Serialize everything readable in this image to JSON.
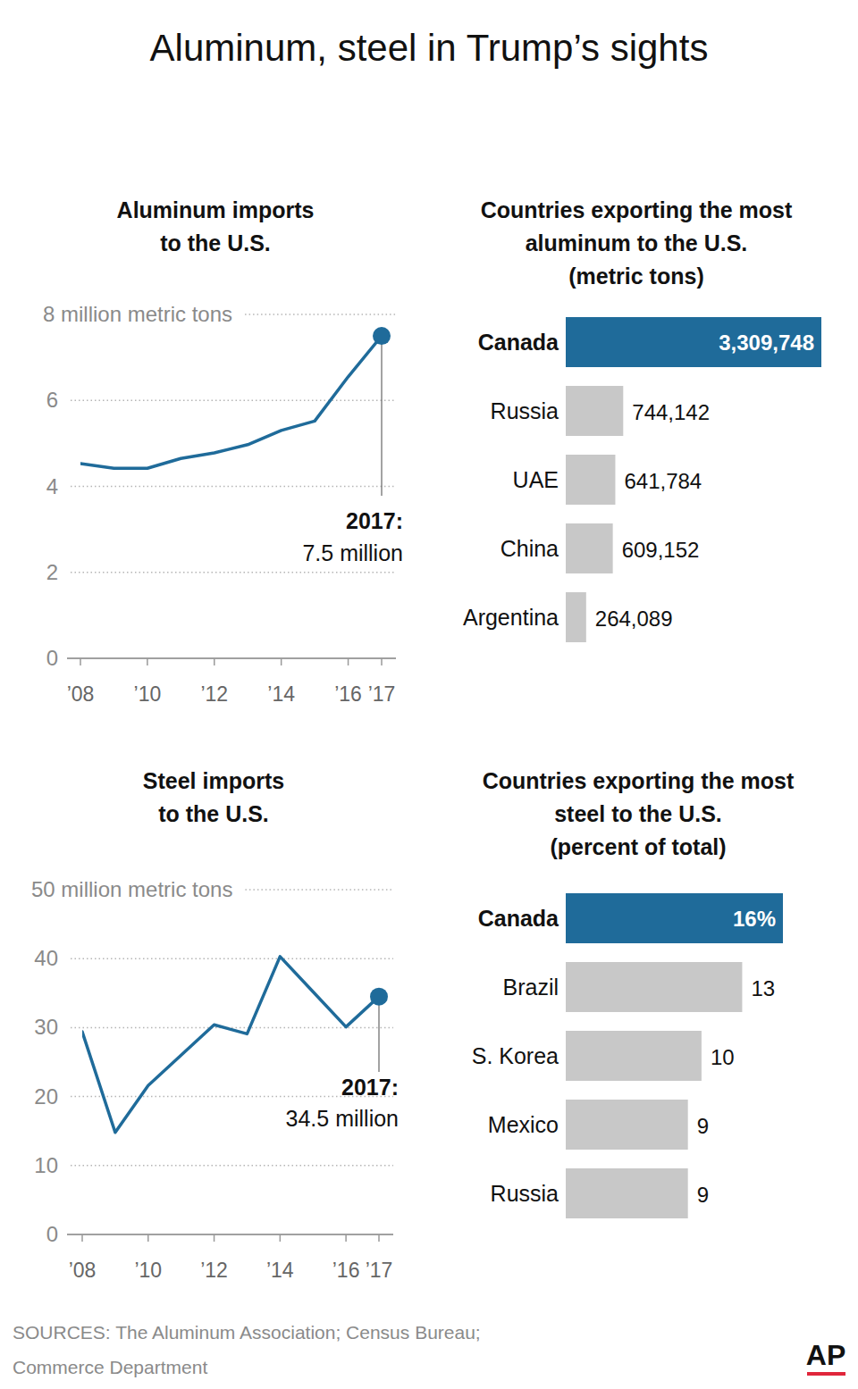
{
  "title": "Aluminum, steel in Trump’s sights",
  "chart_data": [
    {
      "type": "line",
      "title": "Aluminum imports to the U.S.",
      "x": [
        2008,
        2009,
        2010,
        2011,
        2012,
        2013,
        2014,
        2015,
        2016,
        2017
      ],
      "values": [
        4.53,
        4.42,
        4.42,
        4.65,
        4.78,
        4.97,
        5.3,
        5.52,
        6.55,
        7.5
      ],
      "color": "#1f6b9a",
      "xlim": [
        2008,
        2017
      ],
      "xticks": [
        {
          "value": 2008,
          "label": "’08"
        },
        {
          "value": 2010,
          "label": "’10"
        },
        {
          "value": 2012,
          "label": "’12"
        },
        {
          "value": 2014,
          "label": "’14"
        },
        {
          "value": 2016,
          "label": "’16"
        },
        {
          "value": 2017,
          "label": "’17"
        }
      ],
      "ylim": [
        0,
        8
      ],
      "yticks": [
        0,
        2,
        4,
        6,
        {
          "value": 8,
          "label": "8 million metric tons"
        }
      ],
      "grid": true,
      "annotation": {
        "x": 2017,
        "label": "2017:",
        "text": "7.5 million"
      }
    },
    {
      "type": "bar",
      "orientation": "horizontal",
      "title": "Countries exporting the most aluminum to the U.S.",
      "subtitle": "(metric tons)",
      "categories": [
        "Canada",
        "Russia",
        "UAE",
        "China",
        "Argentina"
      ],
      "values": [
        3309748,
        744142,
        641784,
        609152,
        264089
      ],
      "value_labels": [
        "3,309,748",
        "744,142",
        "641,784",
        "609,152",
        "264,089"
      ],
      "data_labels": true,
      "tick_labels": "y",
      "colors": [
        "#1f6b9a",
        "#c8c8c8",
        "#c8c8c8",
        "#c8c8c8",
        "#c8c8c8"
      ]
    },
    {
      "type": "line",
      "title": "Steel imports to the U.S.",
      "x": [
        2008,
        2009,
        2010,
        2011,
        2012,
        2013,
        2014,
        2015,
        2016,
        2017
      ],
      "values": [
        29.4,
        14.8,
        21.6,
        26,
        30.4,
        29.1,
        40.3,
        35.2,
        30.1,
        34.5
      ],
      "color": "#1f6b9a",
      "xlim": [
        2008,
        2017
      ],
      "xticks": [
        {
          "value": 2008,
          "label": "’08"
        },
        {
          "value": 2010,
          "label": "’10"
        },
        {
          "value": 2012,
          "label": "’12"
        },
        {
          "value": 2014,
          "label": "’14"
        },
        {
          "value": 2016,
          "label": "’16"
        },
        {
          "value": 2017,
          "label": "’17"
        }
      ],
      "ylim": [
        0,
        50
      ],
      "yticks": [
        0,
        10,
        20,
        30,
        40,
        {
          "value": 50,
          "label": "50 million metric tons"
        }
      ],
      "grid": true,
      "annotation": {
        "x": 2017,
        "label": "2017:",
        "text": "34.5 million"
      }
    },
    {
      "type": "bar",
      "orientation": "horizontal",
      "title": "Countries exporting the most steel to the U.S.",
      "subtitle": "(percent of total)",
      "categories": [
        "Canada",
        "Brazil",
        "S. Korea",
        "Mexico",
        "Russia"
      ],
      "values": [
        16,
        13,
        10,
        9,
        9
      ],
      "value_labels": [
        "16%",
        "13",
        "10",
        "9",
        "9"
      ],
      "data_labels": true,
      "tick_labels": "y",
      "colors": [
        "#1f6b9a",
        "#c8c8c8",
        "#c8c8c8",
        "#c8c8c8",
        "#c8c8c8"
      ]
    }
  ],
  "source": "SOURCES: The Aluminum Association; Census Bureau; Commerce Department",
  "credit": "AP"
}
